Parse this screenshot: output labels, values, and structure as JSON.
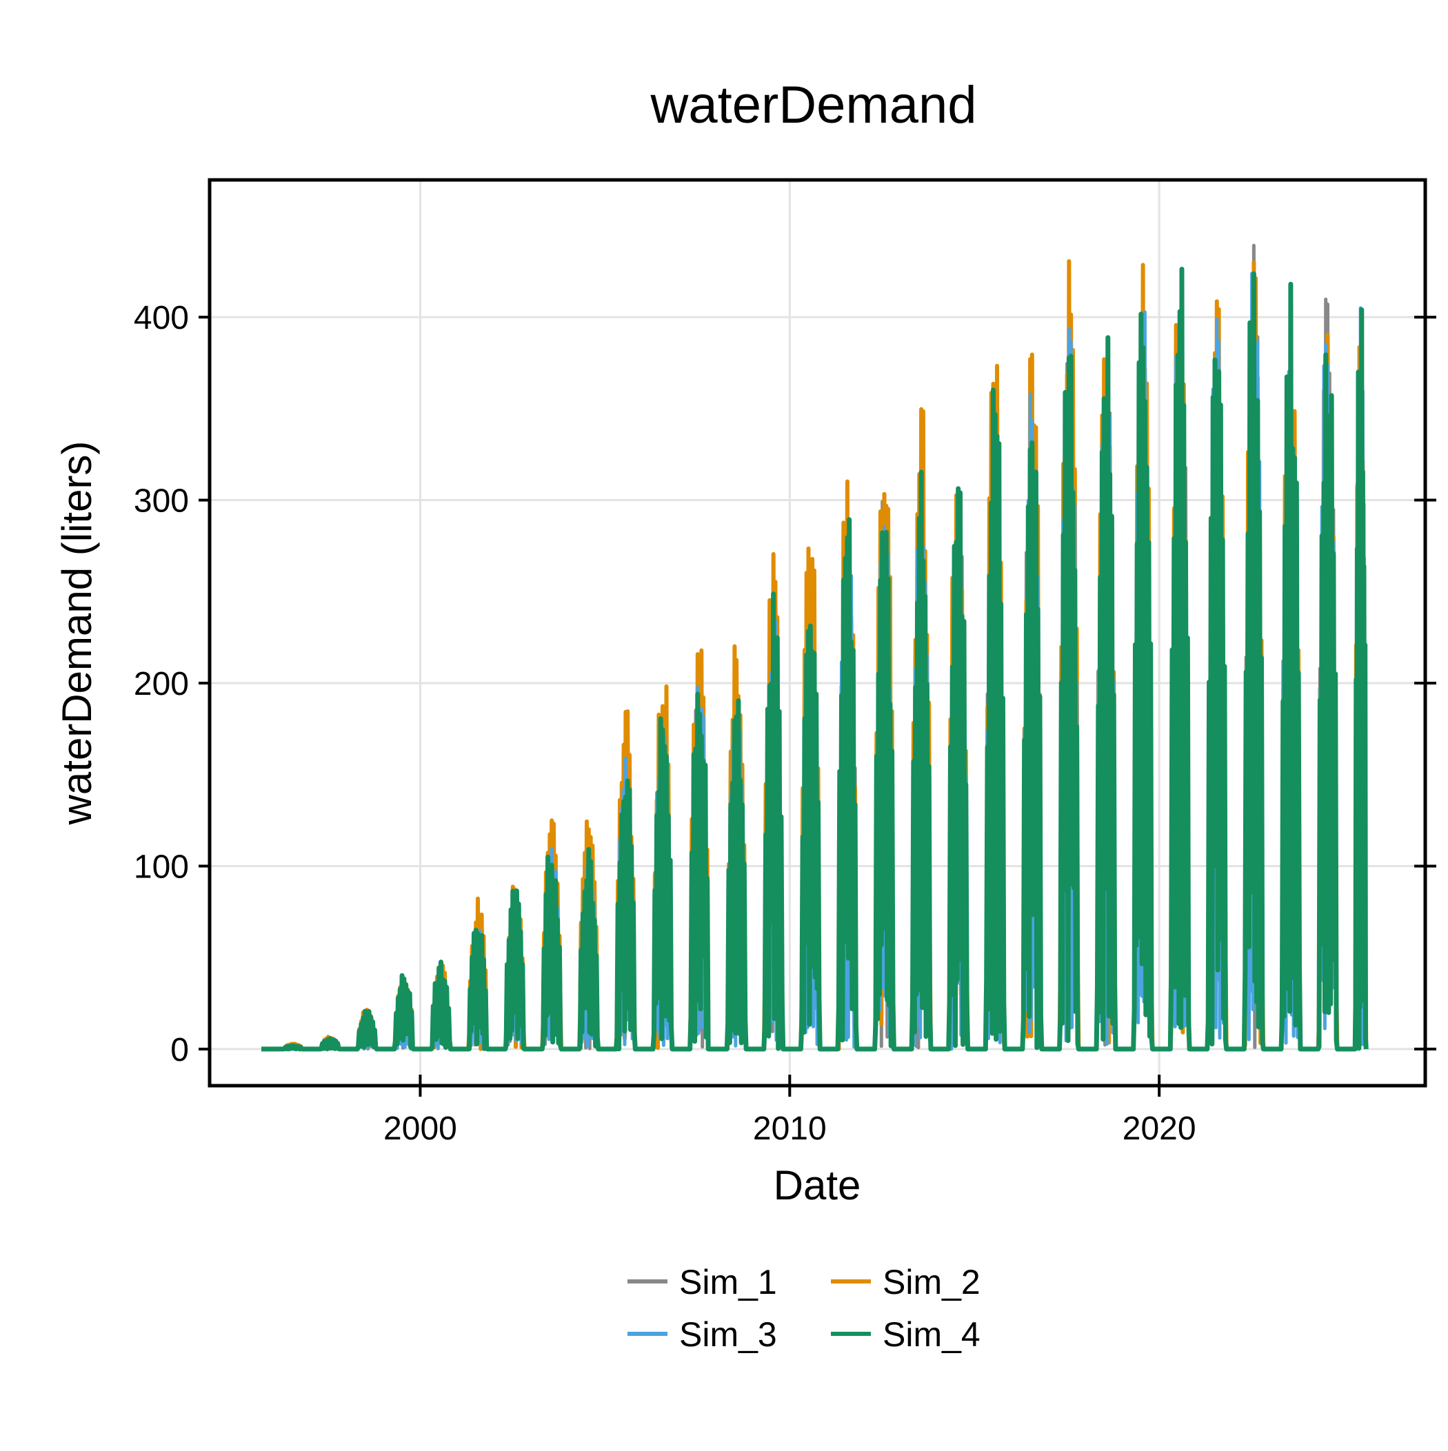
{
  "chart_data": {
    "type": "line",
    "title": "waterDemand",
    "xlabel": "Date",
    "ylabel": "waterDemand (liters)",
    "x_ticks": [
      "2000",
      "2010",
      "2020"
    ],
    "y_ticks": [
      "0",
      "100",
      "200",
      "300",
      "400"
    ],
    "xlim": [
      1994.3,
      2027.2
    ],
    "ylim": [
      -20,
      475
    ],
    "grid": true,
    "legend_position": "bottom",
    "x_start": 1995.7,
    "x_end": 2025.6,
    "series": [
      {
        "name": "Sim_1",
        "color": "#888888",
        "seasonal_peaks": [
          [
            1996,
            2
          ],
          [
            1997,
            5
          ],
          [
            1998,
            20
          ],
          [
            1999,
            38
          ],
          [
            2000,
            45
          ],
          [
            2001,
            70
          ],
          [
            2002,
            85
          ],
          [
            2003,
            112
          ],
          [
            2004,
            108
          ],
          [
            2005,
            162
          ],
          [
            2006,
            190
          ],
          [
            2007,
            212
          ],
          [
            2008,
            200
          ],
          [
            2009,
            250
          ],
          [
            2010,
            265
          ],
          [
            2011,
            298
          ],
          [
            2012,
            312
          ],
          [
            2013,
            322
          ],
          [
            2014,
            315
          ],
          [
            2015,
            378
          ],
          [
            2016,
            370
          ],
          [
            2017,
            405
          ],
          [
            2018,
            398
          ],
          [
            2019,
            430
          ],
          [
            2020,
            438
          ],
          [
            2021,
            412
          ],
          [
            2022,
            445
          ],
          [
            2023,
            418
          ],
          [
            2024,
            422
          ],
          [
            2025,
            424
          ]
        ]
      },
      {
        "name": "Sim_2",
        "color": "#E08C00",
        "seasonal_peaks": [
          [
            1996,
            3
          ],
          [
            1997,
            7
          ],
          [
            1998,
            23
          ],
          [
            1999,
            42
          ],
          [
            2000,
            48
          ],
          [
            2001,
            84
          ],
          [
            2002,
            97
          ],
          [
            2003,
            137
          ],
          [
            2004,
            134
          ],
          [
            2005,
            193
          ],
          [
            2006,
            223
          ],
          [
            2007,
            241
          ],
          [
            2008,
            228
          ],
          [
            2009,
            277
          ],
          [
            2010,
            300
          ],
          [
            2011,
            330
          ],
          [
            2012,
            359
          ],
          [
            2013,
            365
          ],
          [
            2014,
            348
          ],
          [
            2015,
            406
          ],
          [
            2016,
            398
          ],
          [
            2017,
            441
          ],
          [
            2018,
            404
          ],
          [
            2019,
            449
          ],
          [
            2020,
            456
          ],
          [
            2021,
            427
          ],
          [
            2022,
            450
          ],
          [
            2023,
            421
          ],
          [
            2024,
            423
          ],
          [
            2025,
            426
          ]
        ]
      },
      {
        "name": "Sim_3",
        "color": "#4BA3E0",
        "seasonal_peaks": [
          [
            1996,
            2
          ],
          [
            1997,
            5
          ],
          [
            1998,
            19
          ],
          [
            1999,
            36
          ],
          [
            2000,
            44
          ],
          [
            2001,
            68
          ],
          [
            2002,
            82
          ],
          [
            2003,
            110
          ],
          [
            2004,
            106
          ],
          [
            2005,
            160
          ],
          [
            2006,
            188
          ],
          [
            2007,
            210
          ],
          [
            2008,
            198
          ],
          [
            2009,
            248
          ],
          [
            2010,
            262
          ],
          [
            2011,
            296
          ],
          [
            2012,
            310
          ],
          [
            2013,
            320
          ],
          [
            2014,
            312
          ],
          [
            2015,
            376
          ],
          [
            2016,
            368
          ],
          [
            2017,
            402
          ],
          [
            2018,
            396
          ],
          [
            2019,
            428
          ],
          [
            2020,
            436
          ],
          [
            2021,
            410
          ],
          [
            2022,
            442
          ],
          [
            2023,
            416
          ],
          [
            2024,
            420
          ],
          [
            2025,
            422
          ]
        ]
      },
      {
        "name": "Sim_4",
        "color": "#158F5D",
        "seasonal_peaks": [
          [
            1996,
            2
          ],
          [
            1997,
            6
          ],
          [
            1998,
            22
          ],
          [
            1999,
            42
          ],
          [
            2000,
            48
          ],
          [
            2001,
            75
          ],
          [
            2002,
            90
          ],
          [
            2003,
            118
          ],
          [
            2004,
            111
          ],
          [
            2005,
            167
          ],
          [
            2006,
            197
          ],
          [
            2007,
            218
          ],
          [
            2008,
            203
          ],
          [
            2009,
            253
          ],
          [
            2010,
            270
          ],
          [
            2011,
            301
          ],
          [
            2012,
            315
          ],
          [
            2013,
            325
          ],
          [
            2014,
            318
          ],
          [
            2015,
            381
          ],
          [
            2016,
            376
          ],
          [
            2017,
            408
          ],
          [
            2018,
            400
          ],
          [
            2019,
            435
          ],
          [
            2020,
            441
          ],
          [
            2021,
            412
          ],
          [
            2022,
            451
          ],
          [
            2023,
            420
          ],
          [
            2024,
            421
          ],
          [
            2025,
            425
          ]
        ]
      }
    ]
  }
}
